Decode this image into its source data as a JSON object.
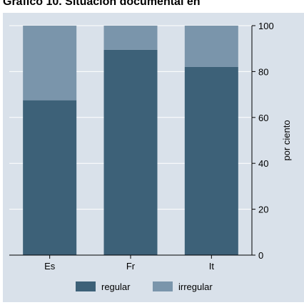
{
  "title": "Gráfico 10. Situación documental en ",
  "chart_data": {
    "type": "bar",
    "stacked": true,
    "categories": [
      "Es",
      "Fr",
      "It"
    ],
    "series": [
      {
        "name": "regular",
        "values": [
          67.5,
          89.5,
          82.0
        ],
        "color": "#3d6178"
      },
      {
        "name": "irregular",
        "values": [
          32.5,
          10.5,
          18.0
        ],
        "color": "#7a95ab"
      }
    ],
    "ylabel": "por ciento",
    "ylim": [
      0,
      100
    ],
    "yticks": [
      0,
      20,
      40,
      60,
      80,
      100
    ],
    "y_axis_position": "right",
    "grid": true,
    "legend_position": "bottom"
  }
}
